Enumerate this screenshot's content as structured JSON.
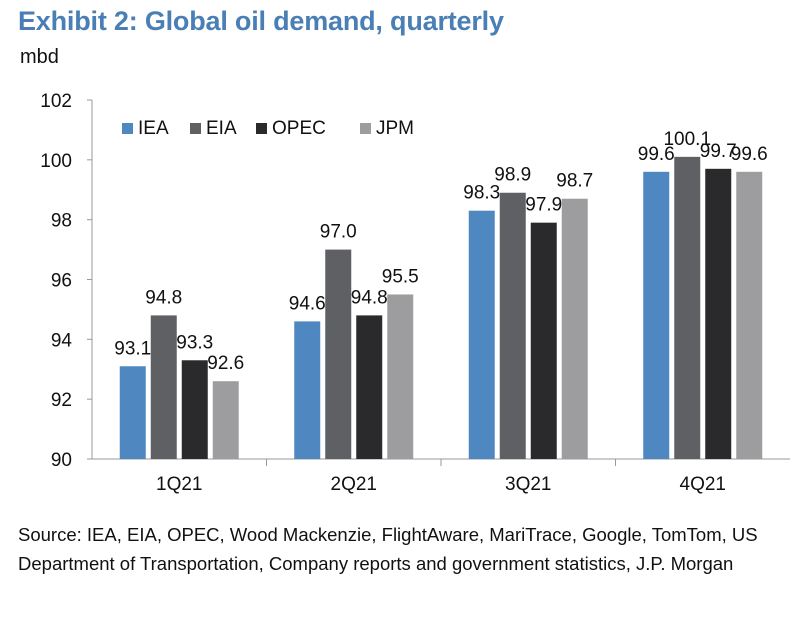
{
  "title": "Exhibit 2: Global oil demand, quarterly",
  "unit_label": "mbd",
  "source": "Source: IEA, EIA, OPEC, Wood Mackenzie, FlightAware, MariTrace, Google, TomTom, US Department of Transportation, Company reports and government statistics, J.P. Morgan",
  "chart_data": {
    "type": "bar",
    "title": "Exhibit 2: Global oil demand, quarterly",
    "xlabel": "",
    "ylabel": "mbd",
    "ylim": [
      90,
      102
    ],
    "yticks": [
      90,
      92,
      94,
      96,
      98,
      100,
      102
    ],
    "grid": false,
    "legend_position": "top-left",
    "categories": [
      "1Q21",
      "2Q21",
      "3Q21",
      "4Q21"
    ],
    "series": [
      {
        "name": "IEA",
        "color": "#4f87c0",
        "values": [
          93.1,
          94.6,
          98.3,
          99.6
        ],
        "labels": [
          "93.1",
          "94.6",
          "98.3",
          "99.6"
        ]
      },
      {
        "name": "EIA",
        "color": "#5f6064",
        "values": [
          94.8,
          97.0,
          98.9,
          100.1
        ],
        "labels": [
          "94.8",
          "97.0",
          "98.9",
          "100.1"
        ]
      },
      {
        "name": "OPEC",
        "color": "#2a2a2c",
        "values": [
          93.3,
          94.8,
          97.9,
          99.7
        ],
        "labels": [
          "93.3",
          "94.8",
          "97.9",
          "99.7"
        ]
      },
      {
        "name": "JPM",
        "color": "#9d9d9f",
        "values": [
          92.6,
          95.5,
          98.7,
          99.6
        ],
        "labels": [
          "92.6",
          "95.5",
          "98.7",
          "99.6"
        ]
      }
    ]
  }
}
